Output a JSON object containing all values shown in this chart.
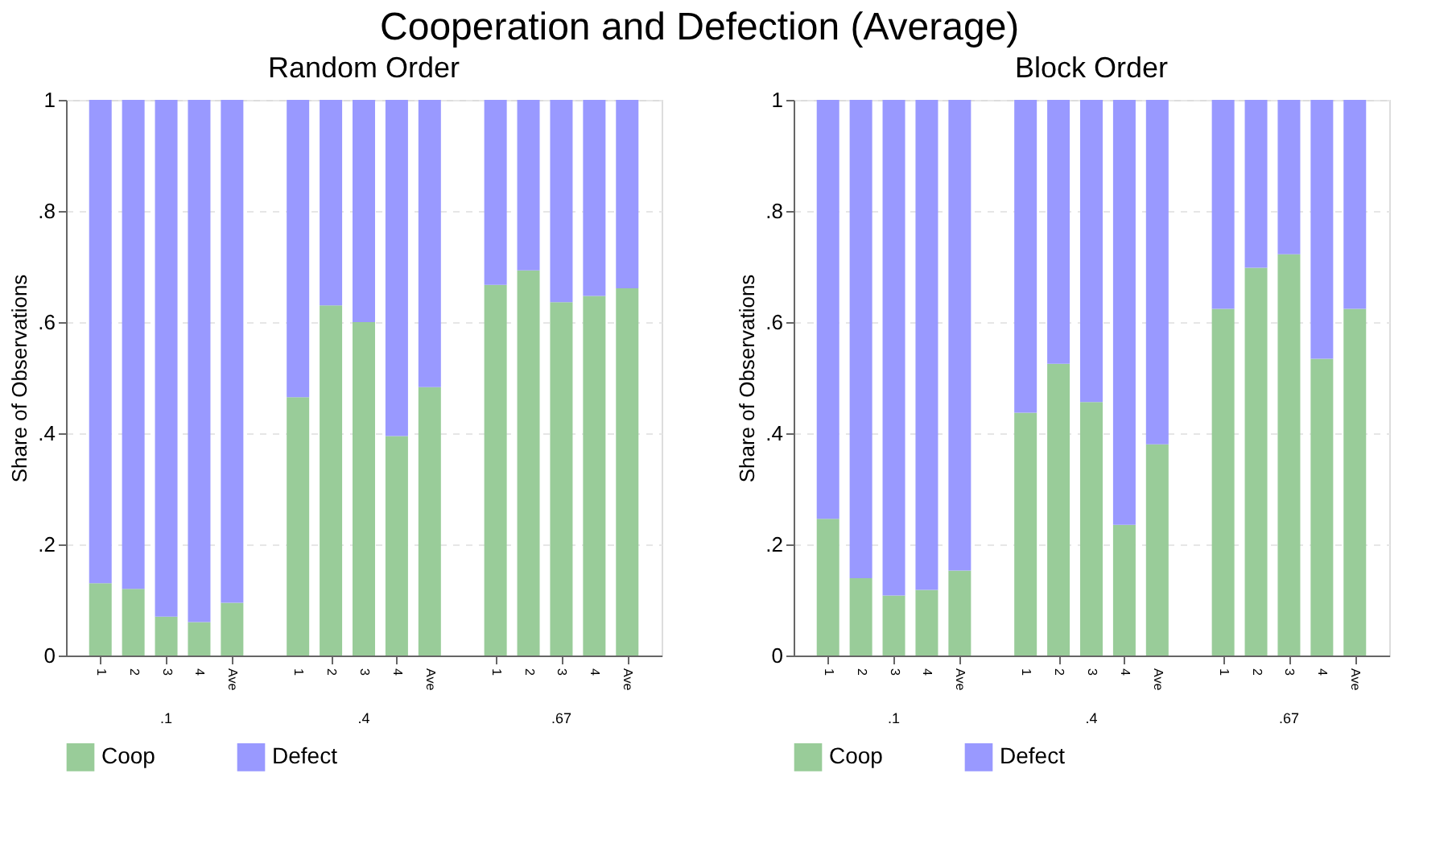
{
  "chart_data": [
    {
      "type": "bar",
      "title": "Random Order",
      "ylabel": "Share of Observations",
      "stacked": true,
      "legend": "bottom",
      "grid": "y",
      "categories": [
        "1",
        "2",
        "3",
        "4",
        "Ave",
        null,
        "1",
        "2",
        "3",
        "4",
        "Ave",
        null,
        "1",
        "2",
        "3",
        "4",
        "Ave"
      ],
      "series": [
        {
          "name": "Coop",
          "color": "#99cc99",
          "values": [
            0.13,
            0.12,
            0.07,
            0.06,
            0.095,
            null,
            0.465,
            0.63,
            0.6,
            0.395,
            0.483,
            null,
            0.667,
            0.693,
            0.636,
            0.647,
            0.661
          ]
        },
        {
          "name": "Defect",
          "color": "#9999ff",
          "values": [
            0.87,
            0.88,
            0.93,
            0.94,
            0.905,
            null,
            0.535,
            0.37,
            0.4,
            0.605,
            0.517,
            null,
            0.333,
            0.307,
            0.364,
            0.353,
            0.339
          ]
        }
      ],
      "ylim": [
        0,
        1
      ],
      "yticks": [
        0,
        {
          "value": 0.2,
          "label": ".2"
        },
        {
          "value": 0.4,
          "label": ".4"
        },
        {
          "value": 0.6,
          "label": ".6"
        },
        {
          "value": 0.8,
          "label": ".8"
        },
        1
      ],
      "annotations": [
        ".1",
        ".4",
        ".67",
        "Cooperation and Defection (Average)"
      ]
    },
    {
      "type": "bar",
      "title": "Block Order",
      "ylabel": "Share of Observations",
      "stacked": true,
      "legend": "bottom",
      "grid": "y",
      "categories": [
        "1",
        "2",
        "3",
        "4",
        "Ave",
        null,
        "1",
        "2",
        "3",
        "4",
        "Ave",
        null,
        "1",
        "2",
        "3",
        "4",
        "Ave"
      ],
      "series": [
        {
          "name": "Coop",
          "color": "#99cc99",
          "values": [
            0.246,
            0.139,
            0.108,
            0.118,
            0.153,
            null,
            0.437,
            0.525,
            0.456,
            0.235,
            0.38,
            null,
            0.624,
            0.698,
            0.722,
            0.534,
            0.624
          ]
        },
        {
          "name": "Defect",
          "color": "#9999ff",
          "values": [
            0.754,
            0.861,
            0.892,
            0.882,
            0.847,
            null,
            0.563,
            0.475,
            0.544,
            0.765,
            0.62,
            null,
            0.376,
            0.302,
            0.278,
            0.466,
            0.376
          ]
        }
      ],
      "ylim": [
        0,
        1
      ],
      "yticks": [
        0,
        {
          "value": 0.2,
          "label": ".2"
        },
        {
          "value": 0.4,
          "label": ".4"
        },
        {
          "value": 0.6,
          "label": ".6"
        },
        {
          "value": 0.8,
          "label": ".8"
        },
        1
      ],
      "annotations": [
        ".1",
        ".4",
        ".67"
      ]
    }
  ]
}
